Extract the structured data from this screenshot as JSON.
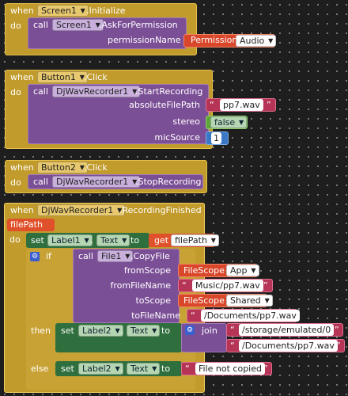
{
  "blocks": {
    "screen_init": {
      "when": "when",
      "component": "Screen1",
      "event": ".Initialize",
      "do": "do",
      "call": "call",
      "call_component": "Screen1",
      "method": ".AskForPermission",
      "param": "permissionName",
      "permission_label": "Permission",
      "permission_value": "Audio"
    },
    "button1_click": {
      "when": "when",
      "component": "Button1",
      "event": ".Click",
      "do": "do",
      "call": "call",
      "call_component": "DjWavRecorder1",
      "method": ".StartRecording",
      "params": [
        "absoluteFilePath",
        "stereo",
        "micSource"
      ],
      "file_path": "pp7.wav",
      "stereo": "false",
      "mic_source": "1"
    },
    "button2_click": {
      "when": "when",
      "component": "Button2",
      "event": ".Click",
      "do": "do",
      "call": "call",
      "call_component": "DjWavRecorder1",
      "method": ".StopRecording"
    },
    "recording_finished": {
      "when": "when",
      "component": "DjWavRecorder1",
      "event": ".RecordingFinished",
      "param": "filePath",
      "do": "do",
      "set": "set",
      "set1_component": "Label1",
      "set1_prop": "Text",
      "to": "to",
      "get": "get",
      "get_var": "filePath",
      "if": "if",
      "then": "then",
      "else": "else",
      "call": "call",
      "call_component": "File1",
      "method": ".CopyFile",
      "copy_params": [
        "fromScope",
        "fromFileName",
        "toScope",
        "toFileName"
      ],
      "filescope": "FileScope",
      "from_scope": "App",
      "from_file": "Music/pp7.wav",
      "to_scope": "Shared",
      "to_file": "/Documents/pp7.wav",
      "set2_component": "Label2",
      "set2_prop": "Text",
      "join": "join",
      "join1": "/storage/emulated/0",
      "join2": "/Documents/pp7.wav",
      "set3_component": "Label2",
      "set3_prop": "Text",
      "else_text": "File not copied"
    }
  },
  "colors": {
    "event": "#c19b2c",
    "procedure_call": "#7b4f96",
    "control": "#c9a235",
    "setter": "#2f6f3e",
    "text": "#b63556",
    "getter": "#e0502a",
    "math": "#3a77c4",
    "logic": "#5ea63b",
    "dropdown": "#d9472b"
  }
}
